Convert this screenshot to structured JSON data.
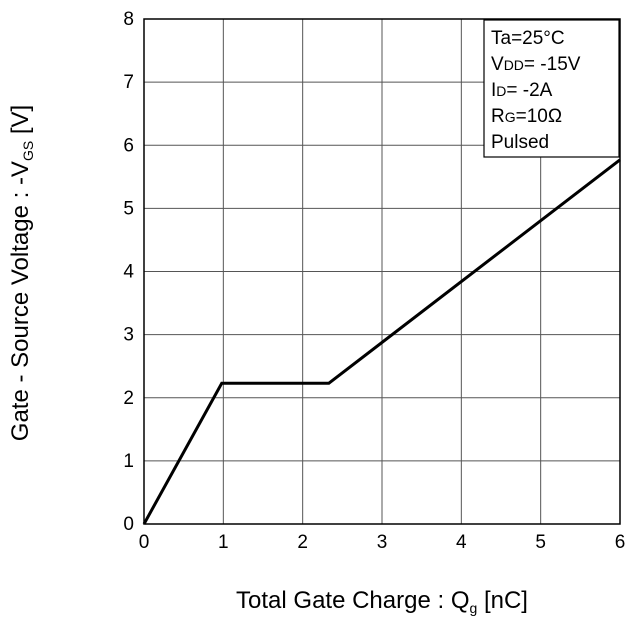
{
  "chart_data": {
    "type": "line",
    "title": "",
    "xlabel": {
      "main": "Total Gate Charge : Q",
      "subscript": "g",
      "unit": " [nC]"
    },
    "ylabel": {
      "main": "Gate - Source Voltage : -V",
      "subscript": "GS",
      "unit": " [V]"
    },
    "xlim": [
      0,
      6
    ],
    "ylim": [
      0,
      8
    ],
    "x_ticks": [
      "0",
      "1",
      "2",
      "3",
      "4",
      "5",
      "6"
    ],
    "y_ticks": [
      "0",
      "1",
      "2",
      "3",
      "4",
      "5",
      "6",
      "7",
      "8"
    ],
    "grid": true,
    "legend_position": "top-right",
    "series": [
      {
        "points": [
          {
            "x": 0,
            "y": 0
          },
          {
            "x": 0.98,
            "y": 2.23
          },
          {
            "x": 2.33,
            "y": 2.23
          },
          {
            "x": 6.0,
            "y": 5.77
          }
        ]
      }
    ],
    "conditions": [
      {
        "main": "Ta=25°C",
        "sub": "",
        "rest": ""
      },
      {
        "main": "V",
        "sub": "DD",
        "rest": "= -15V"
      },
      {
        "main": "I",
        "sub": "D",
        "rest": "= -2A"
      },
      {
        "main": "R",
        "sub": "G",
        "rest": "=10Ω"
      },
      {
        "main": "Pulsed",
        "sub": "",
        "rest": ""
      }
    ]
  },
  "colors": {
    "line": "#000000",
    "grid": "#555555",
    "frame": "#000000"
  }
}
